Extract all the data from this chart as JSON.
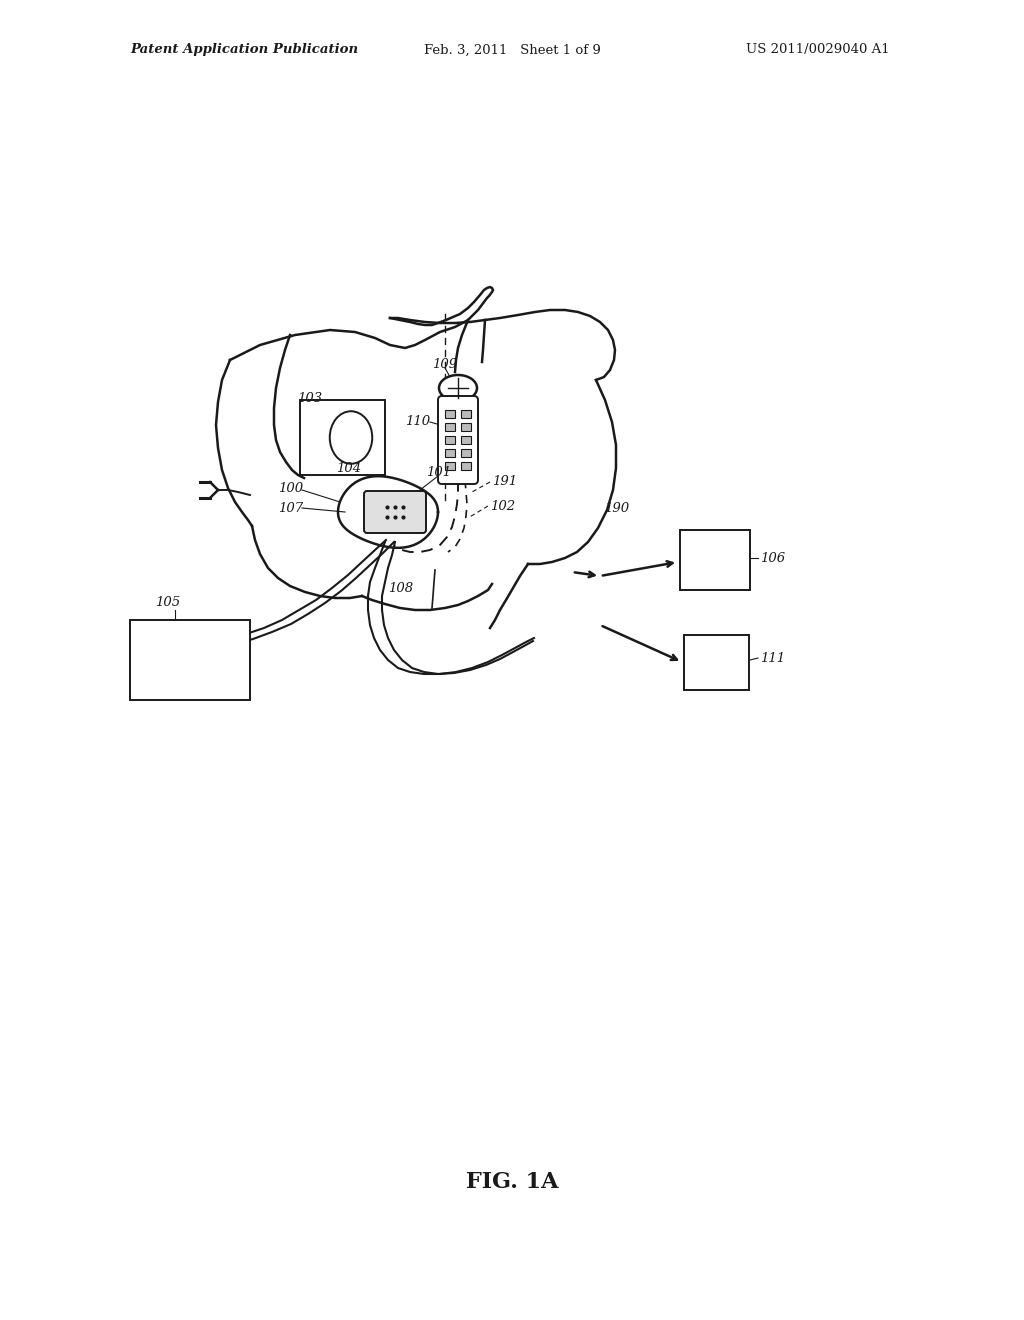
{
  "title": "FIG. 1A",
  "header_left": "Patent Application Publication",
  "header_center": "Feb. 3, 2011   Sheet 1 of 9",
  "header_right": "US 2011/0029040 A1",
  "background_color": "#ffffff",
  "fig_width": 10.24,
  "fig_height": 13.2,
  "dpi": 100
}
